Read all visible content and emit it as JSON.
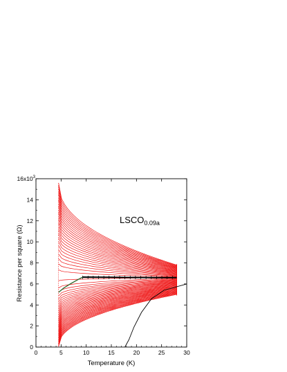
{
  "chart_data": {
    "type": "line",
    "xlabel": "Temperature (K)",
    "ylabel": "Resistance per square (Ω)",
    "xlim": [
      0,
      30
    ],
    "ylim": [
      0,
      16000
    ],
    "x_ticks": [
      "0",
      "5",
      "10",
      "15",
      "20",
      "25",
      "30"
    ],
    "y_ticks": [
      "0",
      "2",
      "4",
      "6",
      "8",
      "10",
      "12",
      "14",
      "16x10"
    ],
    "y_tick_exponent": "3",
    "annotation": {
      "text": "LSCO",
      "subscript": "0.09a",
      "x": 17.8,
      "y": 12000
    },
    "grid": false,
    "legend": "none",
    "colors": {
      "curves": "#ee1111",
      "separatrix": "#000000",
      "fit": "#2e6b2e",
      "axes": "#000000"
    },
    "series_families": [
      {
        "name": "",
        "color": "#ee1111",
        "x_range": [
          4.5,
          28
        ],
        "y_end_range_at_28K": [
          5000,
          7800
        ],
        "y_start_range_at_4p5K": [
          50,
          15600
        ]
      }
    ],
    "separatrix": {
      "x": [
        9.3,
        12,
        15,
        18,
        21,
        24,
        28
      ],
      "y": [
        6650,
        6640,
        6630,
        6620,
        6610,
        6600,
        6600
      ]
    },
    "low_temp_fit": {
      "x": [
        4.5,
        5.5,
        7,
        8.5,
        9.3
      ],
      "y": [
        5200,
        5600,
        6050,
        6450,
        6650
      ]
    },
    "superconducting_curve": {
      "x": [
        17.7,
        18.5,
        19.5,
        21,
        23,
        25.5,
        30
      ],
      "y": [
        0,
        700,
        1900,
        3300,
        4600,
        5400,
        6000
      ]
    }
  }
}
